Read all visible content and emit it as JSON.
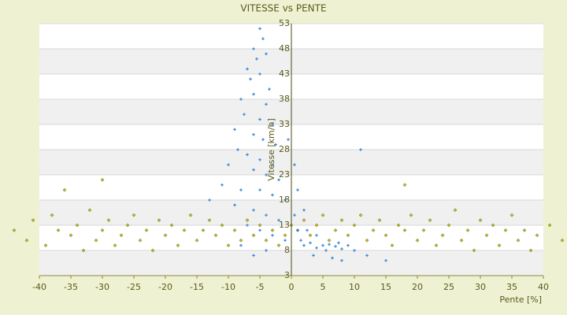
{
  "chart_data": {
    "type": "scatter",
    "title": "VITESSE vs PENTE",
    "x_label": "Pente [%]",
    "y_label": "Vitesse [km/h]",
    "xlim": [
      -40,
      40
    ],
    "xticks": [
      -40,
      -35,
      -30,
      -25,
      -20,
      -15,
      -10,
      -5,
      0,
      5,
      10,
      15,
      20,
      25,
      30,
      35,
      40
    ],
    "ylim": [
      3,
      53
    ],
    "yticks": [
      3,
      8,
      13,
      18,
      23,
      28,
      33,
      38,
      43,
      48,
      53
    ],
    "grid": true,
    "series": [
      {
        "color": "#3a86d4",
        "marker": "plus",
        "x": [
          -5,
          -4.5,
          -6,
          -5.5,
          -4,
          -7,
          -6.5,
          -5,
          -3.5,
          -8,
          -6,
          -4,
          -7.5,
          -5,
          -3,
          -9,
          -6,
          -4.5,
          -2.5,
          -8.5,
          -7,
          -5,
          -3,
          -10,
          -6,
          -4,
          -2,
          -11,
          -8,
          -5,
          -3,
          -1,
          -13,
          -9,
          -6,
          -4,
          -2,
          -7,
          -5,
          -3,
          -1,
          -8,
          -4,
          -6,
          0.5,
          1,
          1.5,
          2,
          3,
          4,
          5,
          5.5,
          6,
          7,
          7.5,
          8,
          9,
          10,
          3.5,
          6.5,
          12,
          15,
          2.5,
          1,
          0.5,
          -0.5,
          2,
          11,
          4,
          8
        ],
        "y": [
          52,
          50,
          48,
          46,
          47,
          44,
          42,
          43,
          40,
          38,
          39,
          37,
          35,
          34,
          33,
          32,
          31,
          30,
          29,
          28,
          27,
          26,
          25,
          25,
          24,
          23,
          22,
          21,
          20,
          20,
          19,
          18,
          18,
          17,
          16,
          15,
          14,
          13,
          12,
          11,
          10,
          9,
          8,
          7,
          15,
          12,
          10,
          9,
          9.5,
          8.5,
          9,
          8,
          9.2,
          8.8,
          9.5,
          8.3,
          9,
          8,
          7,
          6.5,
          7,
          6,
          12,
          20,
          25,
          30,
          16,
          28,
          11,
          6
        ]
      },
      {
        "color": "#c8c020",
        "marker": "diamond",
        "x": [
          -44,
          -42,
          -41,
          -39,
          -38,
          -37,
          -35,
          -34,
          -33,
          -32,
          -31,
          -30,
          -29,
          -28,
          -27,
          -26,
          -25,
          -24,
          -23,
          -22,
          -21,
          -20,
          -19,
          -18,
          -17,
          -16,
          -15,
          -14,
          -13,
          -12,
          -11,
          -10,
          -9,
          -8,
          -7,
          -6,
          -5,
          -4,
          -3,
          -2,
          -1,
          0,
          1,
          2,
          3,
          4,
          5,
          6,
          7,
          8,
          9,
          10,
          11,
          12,
          13,
          14,
          15,
          16,
          17,
          18,
          19,
          20,
          21,
          22,
          23,
          24,
          25,
          26,
          27,
          28,
          29,
          30,
          31,
          32,
          33,
          34,
          35,
          36,
          37,
          38,
          39,
          41,
          43,
          44,
          -36,
          -30,
          18
        ],
        "y": [
          12,
          10,
          14,
          9,
          15,
          12,
          11,
          13,
          8,
          16,
          10,
          12,
          14,
          9,
          11,
          13,
          15,
          10,
          12,
          8,
          14,
          11,
          13,
          9,
          12,
          15,
          10,
          12,
          14,
          11,
          13,
          9,
          12,
          10,
          14,
          11,
          13,
          10,
          12,
          9,
          11,
          13,
          12,
          14,
          11,
          13,
          15,
          10,
          12,
          14,
          11,
          13,
          15,
          10,
          12,
          14,
          11,
          9,
          13,
          12,
          15,
          10,
          12,
          14,
          9,
          11,
          13,
          16,
          10,
          12,
          8,
          14,
          11,
          13,
          9,
          12,
          15,
          10,
          12,
          8,
          11,
          13,
          10,
          15,
          20,
          22,
          21
        ]
      }
    ]
  }
}
